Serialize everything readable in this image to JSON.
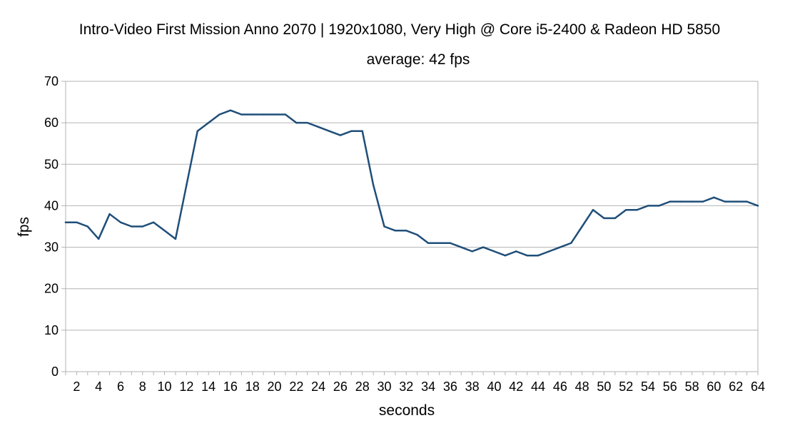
{
  "chart_data": {
    "type": "line",
    "title": "Intro-Video First Mission Anno 2070 | 1920x1080, Very High @ Core i5-2400 & Radeon HD 5850",
    "subtitle": "average: 42 fps",
    "xlabel": "seconds",
    "ylabel": "fps",
    "xlim": [
      1,
      64
    ],
    "ylim": [
      0,
      70
    ],
    "yticks": [
      0,
      10,
      20,
      30,
      40,
      50,
      60,
      70
    ],
    "xticks": [
      2,
      4,
      6,
      8,
      10,
      12,
      14,
      16,
      18,
      20,
      22,
      24,
      26,
      28,
      30,
      32,
      34,
      36,
      38,
      40,
      42,
      44,
      46,
      48,
      50,
      52,
      54,
      56,
      58,
      60,
      62,
      64
    ],
    "grid": true,
    "legend": "none",
    "colors": {
      "line": "#1f4e79"
    },
    "x": [
      1,
      2,
      3,
      4,
      5,
      6,
      7,
      8,
      9,
      10,
      11,
      12,
      13,
      14,
      15,
      16,
      17,
      18,
      19,
      20,
      21,
      22,
      23,
      24,
      25,
      26,
      27,
      28,
      29,
      30,
      31,
      32,
      33,
      34,
      35,
      36,
      37,
      38,
      39,
      40,
      41,
      42,
      43,
      44,
      45,
      46,
      47,
      48,
      49,
      50,
      51,
      52,
      53,
      54,
      55,
      56,
      57,
      58,
      59,
      60,
      61,
      62,
      63,
      64
    ],
    "values": [
      36,
      36,
      35,
      32,
      38,
      36,
      35,
      35,
      36,
      34,
      32,
      45,
      58,
      60,
      62,
      63,
      62,
      62,
      62,
      62,
      62,
      60,
      60,
      59,
      58,
      57,
      58,
      58,
      45,
      35,
      34,
      34,
      33,
      31,
      31,
      31,
      30,
      29,
      30,
      29,
      28,
      29,
      28,
      28,
      29,
      30,
      31,
      35,
      39,
      37,
      37,
      39,
      39,
      40,
      40,
      41,
      41,
      41,
      41,
      42,
      41,
      41,
      41,
      40
    ]
  }
}
